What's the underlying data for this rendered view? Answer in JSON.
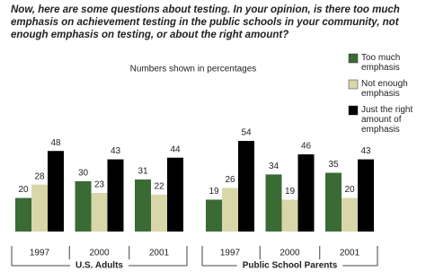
{
  "chart_data": {
    "type": "bar",
    "title": "Now, here are some questions about testing.  In your opinion, is there too much emphasis on achievement testing in the public schools in your community, not enough emphasis on testing, or about the right amount?",
    "subtitle": "Numbers shown in percentages",
    "groups": [
      {
        "name": "U.S. Adults",
        "categories": [
          "1997",
          "2000",
          "2001"
        ]
      },
      {
        "name": "Public School Parents",
        "categories": [
          "1997",
          "2000",
          "2001"
        ]
      }
    ],
    "series": [
      {
        "name": "Too much emphasis",
        "color": "#3a6b35",
        "values": [
          20,
          30,
          31,
          19,
          34,
          35
        ]
      },
      {
        "name": "Not enough emphasis",
        "color": "#d9d6a9",
        "values": [
          28,
          23,
          22,
          26,
          19,
          20
        ]
      },
      {
        "name": "Just the right amount of emphasis",
        "color": "#000000",
        "values": [
          48,
          43,
          44,
          54,
          46,
          43
        ]
      }
    ]
  }
}
